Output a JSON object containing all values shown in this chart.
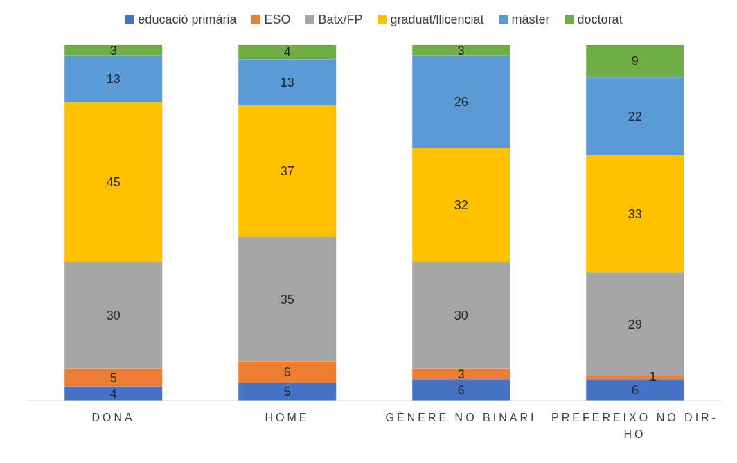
{
  "chart_data": {
    "type": "bar",
    "stacked": true,
    "data_labels": true,
    "legend": "top",
    "tick_labels": "x",
    "ylim": [
      0,
      100
    ],
    "categories": [
      "DONA",
      "HOME",
      "GÈNERE NO BINARI",
      "PREFEREIXO NO DIR-HO"
    ],
    "series": [
      {
        "name": "educació primària",
        "color": "#4472c4",
        "values": [
          4,
          5,
          6,
          6
        ]
      },
      {
        "name": "ESO",
        "color": "#ed7d31",
        "values": [
          5,
          6,
          3,
          1
        ]
      },
      {
        "name": "Batx/FP",
        "color": "#a5a5a5",
        "values": [
          30,
          35,
          30,
          29
        ]
      },
      {
        "name": "graduat/llicenciat",
        "color": "#ffc000",
        "values": [
          45,
          37,
          32,
          33
        ]
      },
      {
        "name": "màster",
        "color": "#5b9bd5",
        "values": [
          13,
          13,
          26,
          22
        ]
      },
      {
        "name": "doctorat",
        "color": "#70ad47",
        "values": [
          3,
          4,
          3,
          9
        ]
      }
    ]
  }
}
